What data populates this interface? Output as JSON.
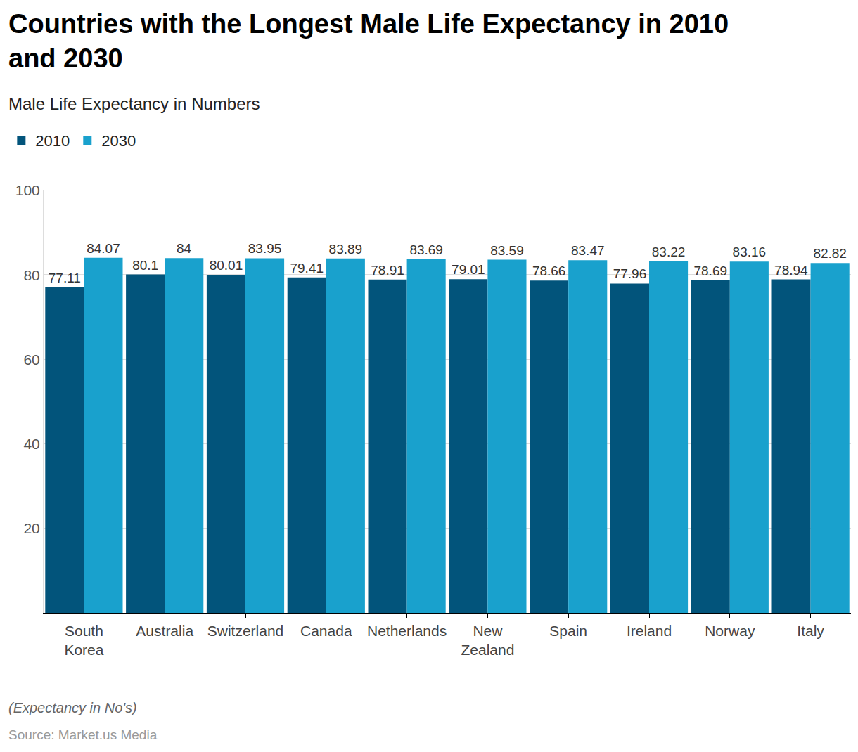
{
  "chart_data": {
    "type": "bar",
    "title": "Countries with the Longest Male Life Expectancy in 2010 and 2030",
    "subtitle": "Male Life Expectancy in Numbers",
    "footnote": "(Expectancy in No's)",
    "source": "Source: Market.us Media",
    "categories": [
      "South Korea",
      "Australia",
      "Switzerland",
      "Canada",
      "Netherlands",
      "New Zealand",
      "Spain",
      "Ireland",
      "Norway",
      "Italy"
    ],
    "series": [
      {
        "name": "2010",
        "color": "#02547b",
        "values": [
          77.11,
          80.1,
          80.01,
          79.41,
          78.91,
          79.01,
          78.66,
          77.96,
          78.69,
          78.94
        ]
      },
      {
        "name": "2030",
        "color": "#19a1cd",
        "values": [
          84.07,
          84,
          83.95,
          83.89,
          83.69,
          83.59,
          83.47,
          83.22,
          83.16,
          82.82
        ]
      }
    ],
    "ylim": [
      0,
      100
    ],
    "yticks": [
      20,
      40,
      60,
      80,
      100
    ],
    "grid": true,
    "legend": "top-left",
    "data_labels": true
  }
}
